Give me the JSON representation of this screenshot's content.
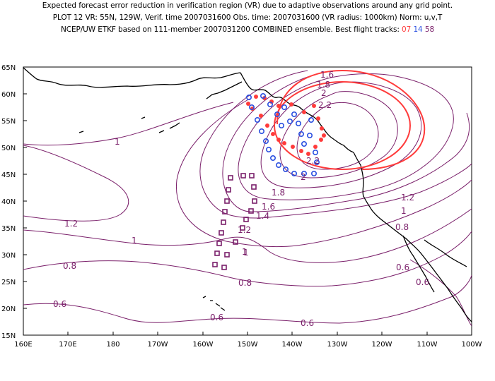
{
  "header": {
    "line1": "Expected forecast error reduction in verification region (VR) due to adaptive observations around any grid point.",
    "line2": "PLOT 12 VR: 55N, 129W, Verif. time 2007031600 Obs. time: 2007031600 (VR radius: 1000km) Norm: u,v,T",
    "line3_prefix": "NCEP/UW ETKF based on 111-member 2007031200 COMBINED ensemble.  Best flight tracks:",
    "track_a": "07",
    "track_b": "14",
    "track_c": "58"
  },
  "axes": {
    "lat_ticks": [
      "65N",
      "60N",
      "55N",
      "50N",
      "45N",
      "40N",
      "35N",
      "30N",
      "25N",
      "20N",
      "15N"
    ],
    "lon_ticks": [
      "160E",
      "170E",
      "180",
      "170W",
      "160W",
      "150W",
      "140W",
      "130W",
      "120W",
      "110W",
      "100W"
    ]
  },
  "contour_labels": {
    "c1": "1.6",
    "c2": "1.8",
    "c3": "2",
    "c4": "2.2",
    "c5": "2.2",
    "c6": "2",
    "c7": "1.8",
    "c8": "1.6",
    "c9": "1.4",
    "c10": "1.2",
    "c11": "1",
    "c12": "1.2",
    "c13": "1",
    "c14": "0.8",
    "c15": "0.6",
    "c16": "0.8",
    "c17": "0.6",
    "c18": "0.6",
    "c19": "0.6",
    "c20": "1",
    "c21": "1.2",
    "c22": "1",
    "c23": "0.8",
    "c24": "0.6",
    "c25": "1"
  },
  "colors": {
    "contour": "#7a1f6a",
    "vr_circle": "#ff3b3b",
    "track_07": "#ff3b3b",
    "track_14": "#2a4fe0",
    "track_58": "#7a1f6a"
  }
}
